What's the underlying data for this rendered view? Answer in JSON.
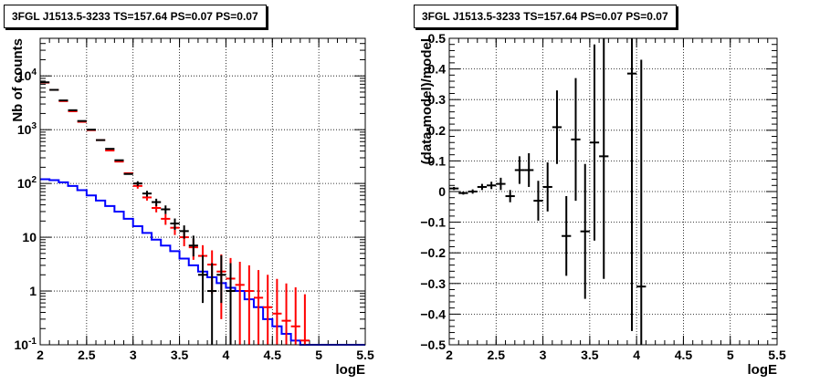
{
  "chart_data": [
    {
      "type": "histogram",
      "title": "3FGL J1513.5-3233 TS=157.64 PS=0.07 PS=0.07",
      "xlabel": "logE",
      "ylabel": "Nb of counts",
      "xlim": [
        2,
        5.5
      ],
      "ylim": [
        0.1,
        50000
      ],
      "yscale": "log",
      "grid": true,
      "x_ticks": [
        "2",
        "2.5",
        "3",
        "3.5",
        "4",
        "4.5",
        "5",
        "5.5"
      ],
      "y_ticks": [
        "10^-1",
        "1",
        "10",
        "10^2",
        "10^3",
        "10^4"
      ],
      "series": [
        {
          "color": "#0000ff",
          "style": "step",
          "x": [
            2.05,
            2.15,
            2.25,
            2.35,
            2.45,
            2.55,
            2.65,
            2.75,
            2.85,
            2.95,
            3.05,
            3.15,
            3.25,
            3.35,
            3.45,
            3.55,
            3.65,
            3.75,
            3.85,
            3.95,
            4.05,
            4.15,
            4.25,
            4.35,
            4.45,
            4.55,
            4.65,
            4.75,
            4.85,
            4.95,
            5.05,
            5.15,
            5.25,
            5.35,
            5.45
          ],
          "values": [
            120,
            115,
            105,
            90,
            75,
            60,
            48,
            38,
            30,
            22,
            16,
            12,
            9,
            7,
            5.5,
            4,
            3,
            2.3,
            1.8,
            1.4,
            1.15,
            1,
            0.7,
            0.5,
            0.3,
            0.22,
            0.16,
            0.12,
            0.1,
            0.1,
            0.1,
            0.1,
            0.1,
            0.1,
            0.1
          ]
        },
        {
          "color": "#ff0000",
          "style": "errorbar",
          "x": [
            2.05,
            2.15,
            2.25,
            2.35,
            2.45,
            2.55,
            2.65,
            2.75,
            2.85,
            2.95,
            3.05,
            3.15,
            3.25,
            3.35,
            3.45,
            3.55,
            3.65,
            3.75,
            3.85,
            3.95,
            4.05,
            4.15,
            4.25,
            4.35,
            4.45,
            4.55,
            4.65,
            4.75,
            4.85
          ],
          "values": [
            7500,
            5500,
            3400,
            2200,
            1400,
            980,
            640,
            410,
            255,
            155,
            90,
            55,
            35,
            22,
            15,
            10,
            6.5,
            4.5,
            3.1,
            2.3,
            1.7,
            1.3,
            1.0,
            0.75,
            0.5,
            0.38,
            0.28,
            0.22,
            0.12
          ],
          "err_low": [
            0,
            0,
            0,
            0,
            0,
            0,
            0,
            0,
            0,
            0,
            10,
            7,
            6,
            5,
            4,
            3.2,
            2.7,
            2.4,
            2.2,
            2.0,
            1.6,
            1.25,
            0.98,
            0.74,
            0.49,
            0.37,
            0.27,
            0.21,
            0.11
          ],
          "err_high": [
            0,
            0,
            0,
            0,
            0,
            0,
            0,
            0,
            0,
            0,
            10,
            7,
            6,
            5,
            4,
            3.2,
            2.7,
            2.6,
            2.6,
            2.5,
            2.4,
            2.2,
            2.0,
            1.7,
            1.5,
            1.3,
            1.1,
            0.95,
            0.75
          ]
        },
        {
          "color": "#000000",
          "style": "errorbar",
          "x": [
            2.05,
            2.15,
            2.25,
            2.35,
            2.45,
            2.55,
            2.65,
            2.75,
            2.85,
            2.95,
            3.05,
            3.15,
            3.25,
            3.35,
            3.45,
            3.55,
            3.65,
            3.75,
            3.85,
            3.95,
            4.05
          ],
          "values": [
            7600,
            5500,
            3500,
            2300,
            1450,
            1000,
            640,
            440,
            270,
            150,
            100,
            65,
            45,
            33,
            18,
            13,
            7,
            2,
            1,
            2,
            1
          ],
          "err_low": [
            0,
            0,
            0,
            0,
            0,
            0,
            0,
            0,
            0,
            0,
            10,
            8,
            7,
            6,
            4.3,
            3.6,
            2.6,
            1.4,
            0.9,
            1.4,
            0.9
          ],
          "err_high": [
            0,
            0,
            0,
            0,
            0,
            0,
            0,
            0,
            0,
            0,
            10,
            8,
            7,
            6,
            4.3,
            3.6,
            3.7,
            2.6,
            2.3,
            2.6,
            2.3
          ]
        }
      ]
    },
    {
      "type": "scatter",
      "title": "3FGL J1513.5-3233 TS=157.64 PS=0.07 PS=0.07",
      "xlabel": "logE",
      "ylabel": "(data-model)/model",
      "xlim": [
        2,
        5.5
      ],
      "ylim": [
        -0.5,
        0.5
      ],
      "grid": true,
      "x_ticks": [
        "2",
        "2.5",
        "3",
        "3.5",
        "4",
        "4.5",
        "5",
        "5.5"
      ],
      "y_ticks": [
        "−0.5",
        "−0.4",
        "−0.3",
        "−0.2",
        "−0.1",
        "0",
        "0.1",
        "0.2",
        "0.3",
        "0.4",
        "0.5"
      ],
      "series": [
        {
          "color": "#000000",
          "x": [
            2.05,
            2.15,
            2.25,
            2.35,
            2.45,
            2.55,
            2.65,
            2.75,
            2.85,
            2.95,
            3.05,
            3.15,
            3.25,
            3.35,
            3.45,
            3.55,
            3.65,
            3.95,
            4.05
          ],
          "values": [
            0.01,
            -0.005,
            0.0,
            0.015,
            0.02,
            0.025,
            -0.015,
            0.07,
            0.07,
            -0.03,
            0.015,
            0.21,
            -0.145,
            0.17,
            -0.13,
            0.16,
            0.115,
            0.385,
            -0.31
          ],
          "err": [
            0.005,
            0.005,
            0.007,
            0.01,
            0.012,
            0.02,
            0.02,
            0.045,
            0.055,
            0.065,
            0.08,
            0.12,
            0.13,
            0.2,
            0.22,
            0.32,
            0.4,
            0.84,
            0.74
          ]
        }
      ]
    }
  ]
}
